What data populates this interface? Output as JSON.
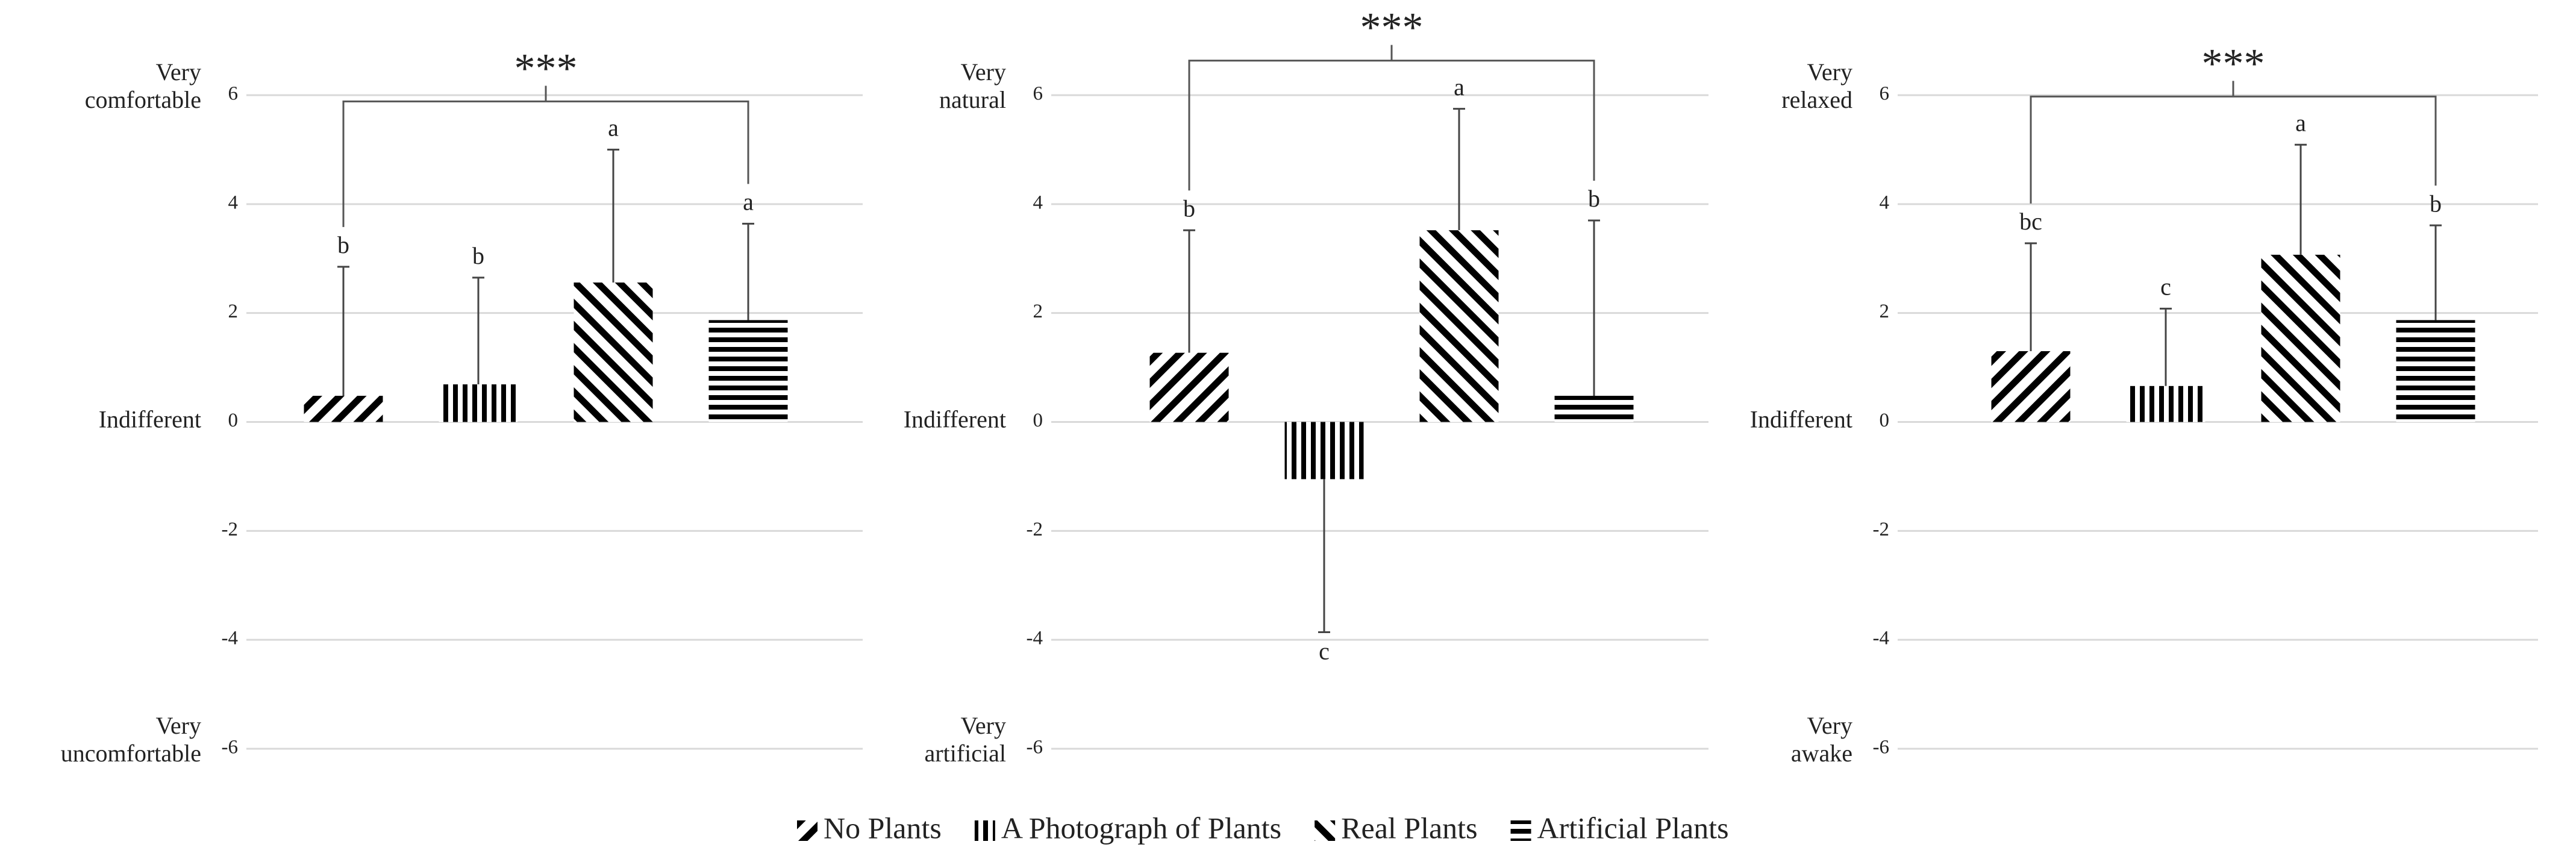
{
  "chart_data": [
    {
      "type": "bar",
      "top_label": [
        "Very",
        "comfortable"
      ],
      "mid_label": "Indifferent",
      "bottom_label": [
        "Very",
        "uncomfortable"
      ],
      "values": [
        0.48,
        0.69,
        2.56,
        1.87
      ],
      "errors": [
        2.37,
        1.96,
        2.44,
        1.77
      ],
      "letters": [
        "b",
        "b",
        "a",
        "a"
      ],
      "significance": "***",
      "ylim": [
        -6,
        6
      ],
      "yticks": [
        -6,
        -4,
        -2,
        0,
        2,
        4,
        6
      ],
      "grid": true
    },
    {
      "type": "bar",
      "top_label": [
        "Very",
        "natural"
      ],
      "mid_label": "Indifferent",
      "bottom_label": [
        "Very",
        "artificial"
      ],
      "values": [
        1.27,
        -1.05,
        3.52,
        0.48
      ],
      "errors": [
        2.25,
        2.81,
        2.23,
        3.22
      ],
      "letters": [
        "b",
        "c",
        "a",
        "b"
      ],
      "significance": "***",
      "ylim": [
        -6,
        6
      ],
      "yticks": [
        -6,
        -4,
        -2,
        0,
        2,
        4,
        6
      ],
      "grid": true
    },
    {
      "type": "bar",
      "top_label": [
        "Very",
        "relaxed"
      ],
      "mid_label": "Indifferent",
      "bottom_label": [
        "Very",
        "awake"
      ],
      "values": [
        1.3,
        0.66,
        3.07,
        1.87
      ],
      "errors": [
        1.98,
        1.42,
        2.02,
        1.74
      ],
      "letters": [
        "bc",
        "c",
        "a",
        "b"
      ],
      "significance": "***",
      "ylim": [
        -6,
        6
      ],
      "yticks": [
        -6,
        -4,
        -2,
        0,
        2,
        4,
        6
      ],
      "grid": true
    }
  ],
  "legend": {
    "entries": [
      {
        "name": "No Plants",
        "pattern": "back-diagonal"
      },
      {
        "name": "A Photograph of Plants",
        "pattern": "vertical"
      },
      {
        "name": "Real Plants",
        "pattern": "diagonal"
      },
      {
        "name": "Artificial Plants",
        "pattern": "horizontal"
      }
    ]
  }
}
